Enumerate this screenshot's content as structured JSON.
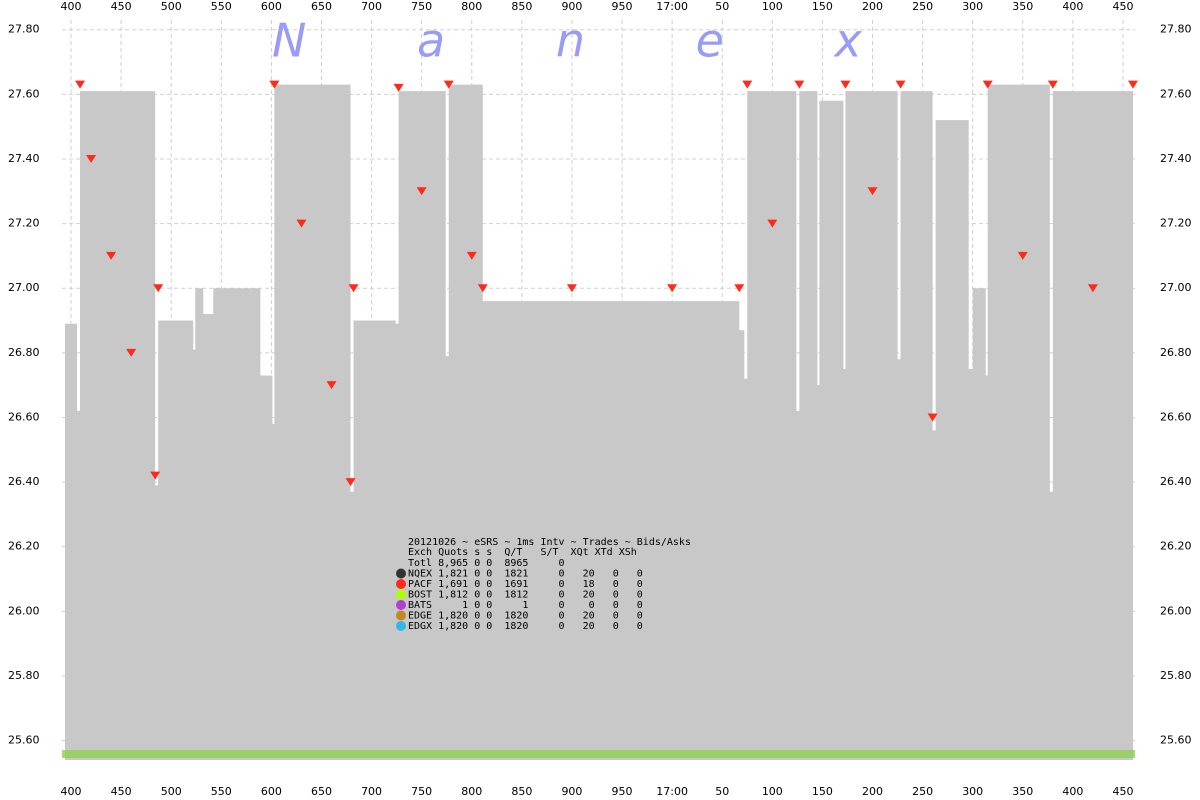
{
  "chart_data": {
    "type": "area",
    "watermark": "N a n e x",
    "xlim": [
      391,
      1462
    ],
    "ylim": [
      25.54,
      27.83
    ],
    "xticks": [
      400,
      450,
      500,
      550,
      600,
      650,
      700,
      750,
      800,
      850,
      900,
      950,
      {
        "value": 1000,
        "label": "17:00"
      },
      {
        "value": 1050,
        "label": "50"
      },
      {
        "value": 1100,
        "label": "100"
      },
      {
        "value": 1150,
        "label": "150"
      },
      {
        "value": 1200,
        "label": "200"
      },
      {
        "value": 1250,
        "label": "250"
      },
      {
        "value": 1300,
        "label": "300"
      },
      {
        "value": 1350,
        "label": "350"
      },
      {
        "value": 1400,
        "label": "400"
      },
      {
        "value": 1450,
        "label": "450"
      }
    ],
    "yticks": [
      {
        "value": 25.6,
        "label": "25.60"
      },
      {
        "value": 25.8,
        "label": "25.80"
      },
      {
        "value": 26.0,
        "label": "26.00"
      },
      {
        "value": 26.2,
        "label": "26.20"
      },
      {
        "value": 26.4,
        "label": "26.40"
      },
      {
        "value": 26.6,
        "label": "26.60"
      },
      {
        "value": 26.8,
        "label": "26.80"
      },
      {
        "value": 27.0,
        "label": "27.00"
      },
      {
        "value": 27.2,
        "label": "27.20"
      },
      {
        "value": 27.4,
        "label": "27.40"
      },
      {
        "value": 27.6,
        "label": "27.60"
      },
      {
        "value": 27.8,
        "label": "27.80"
      }
    ],
    "grid": true,
    "series": [
      {
        "type": "area",
        "color": "#c8c8c8",
        "x": [
          394,
          406,
          409,
          484,
          487,
          522,
          524,
          532,
          542,
          589,
          601,
          603,
          679,
          682,
          724,
          727,
          774,
          777,
          811,
          1067,
          1072,
          1075,
          1124,
          1127,
          1145,
          1147,
          1171,
          1173,
          1225,
          1228,
          1260,
          1263,
          1296,
          1300,
          1313,
          1315,
          1377,
          1380,
          1460
        ],
        "values": [
          26.89,
          26.62,
          27.61,
          26.39,
          26.9,
          26.81,
          27.0,
          26.92,
          27.0,
          26.73,
          26.58,
          27.63,
          26.37,
          26.9,
          26.89,
          27.61,
          26.79,
          27.63,
          26.96,
          26.87,
          26.72,
          27.61,
          26.62,
          27.61,
          26.7,
          27.58,
          26.75,
          27.61,
          26.78,
          27.61,
          26.56,
          27.52,
          26.75,
          27.0,
          26.73,
          27.63,
          26.37,
          27.61,
          26.39
        ]
      },
      {
        "type": "scatter",
        "color": "#ff2a1a",
        "x": [
          409,
          420,
          440,
          460,
          484,
          487,
          603,
          630,
          660,
          679,
          682,
          727,
          750,
          777,
          800,
          811,
          900,
          1000,
          1067,
          1075,
          1100,
          1127,
          1173,
          1200,
          1228,
          1260,
          1315,
          1350,
          1380,
          1420,
          1460
        ],
        "values": [
          27.63,
          27.4,
          27.1,
          26.8,
          26.42,
          27.0,
          27.63,
          27.2,
          26.7,
          26.4,
          27.0,
          27.62,
          27.3,
          27.63,
          27.1,
          27.0,
          27.0,
          27.0,
          27.0,
          27.63,
          27.2,
          27.63,
          27.63,
          27.3,
          27.63,
          26.6,
          27.63,
          27.1,
          27.63,
          27.0,
          27.63
        ]
      }
    ],
    "legend_table": {
      "title": "20121026 ~ eSRS ~ 1ms Intv ~ Trades ~ Bids/Asks",
      "header": "Exch Quots s s  Q/T   S/T  XQt XTd XSh",
      "rows": [
        {
          "text": "Totl 8,965 0 0  8965     0"
        },
        {
          "text": "NQEX 1,821 0 0  1821     0   20   0   0",
          "color": "#333333"
        },
        {
          "text": "PACF 1,691 0 0  1691     0   18   0   0",
          "color": "#ff2a1a"
        },
        {
          "text": "BOST 1,812 0 0  1812     0   20   0   0",
          "color": "#aaff00"
        },
        {
          "text": "BATS     1 0 0     1     0    0   0   0",
          "color": "#b040d0"
        },
        {
          "text": "EDGE 1,820 0 0  1820     0   20   0   0",
          "color": "#c08a20"
        },
        {
          "text": "EDGX 1,820 0 0  1820     0   20   0   0",
          "color": "#30b8e8"
        }
      ]
    }
  }
}
